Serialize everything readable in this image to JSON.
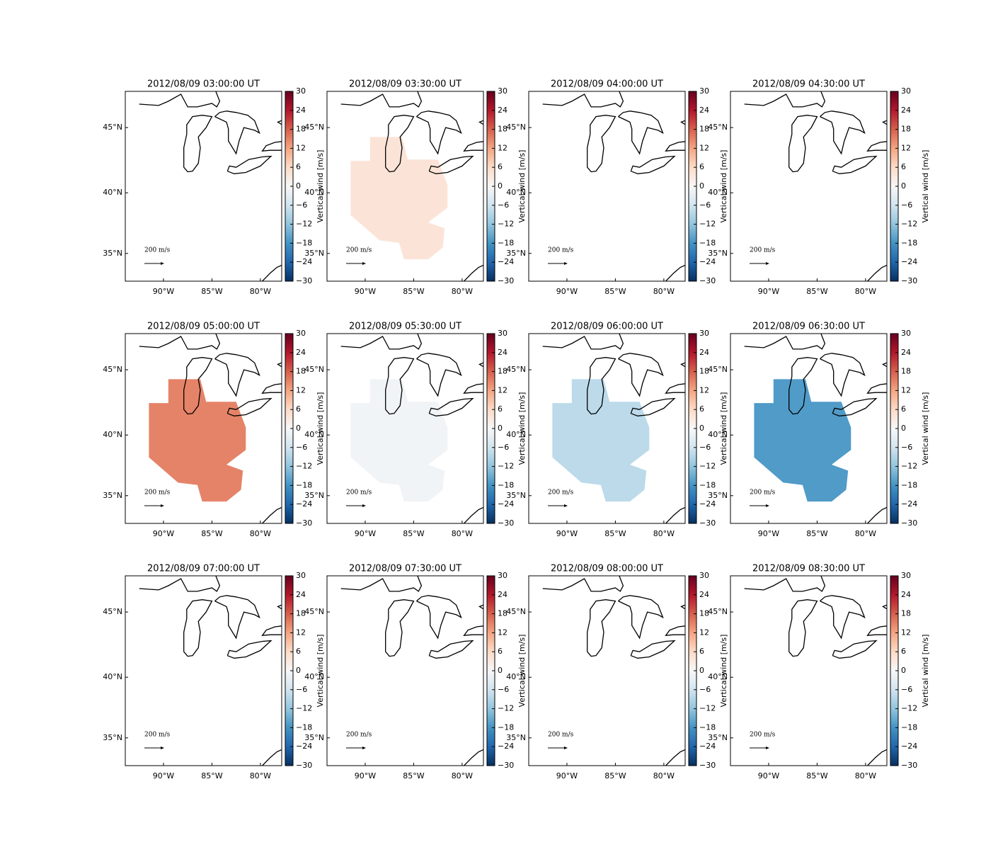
{
  "chart_data": {
    "type": "map",
    "panels": [
      {
        "title": "2012/08/09 03:00:00 UT",
        "value": null
      },
      {
        "title": "2012/08/09 03:30:00 UT",
        "value": 4
      },
      {
        "title": "2012/08/09 04:00:00 UT",
        "value": null
      },
      {
        "title": "2012/08/09 04:30:00 UT",
        "value": null
      },
      {
        "title": "2012/08/09 05:00:00 UT",
        "value": 15
      },
      {
        "title": "2012/08/09 05:30:00 UT",
        "value": -1
      },
      {
        "title": "2012/08/09 06:00:00 UT",
        "value": -8
      },
      {
        "title": "2012/08/09 06:30:00 UT",
        "value": -17
      },
      {
        "title": "2012/08/09 07:00:00 UT",
        "value": null
      },
      {
        "title": "2012/08/09 07:30:00 UT",
        "value": null
      },
      {
        "title": "2012/08/09 08:00:00 UT",
        "value": null
      },
      {
        "title": "2012/08/09 08:30:00 UT",
        "value": null
      }
    ],
    "xlim": [
      -93.94,
      -77.8
    ],
    "ylim": [
      32.6,
      47.6
    ],
    "xticks": [
      {
        "value": -90,
        "label": "90°W"
      },
      {
        "value": -85,
        "label": "85°W"
      },
      {
        "value": -80,
        "label": "80°W"
      }
    ],
    "yticks": [
      {
        "value": 45,
        "label": "45°N"
      },
      {
        "value": 40,
        "label": "40°N"
      },
      {
        "value": 35,
        "label": "35°N"
      }
    ],
    "scale_label": "200 m/s",
    "colorbar": {
      "label": "Vertical wind [m/s]",
      "lim": [
        -30,
        30
      ],
      "ticks": [
        30,
        24,
        18,
        12,
        6,
        0,
        {
          "value": -6,
          "label": "−6"
        },
        {
          "value": -12,
          "label": "−12"
        },
        {
          "value": -18,
          "label": "−18"
        },
        {
          "value": -24,
          "label": "−24"
        },
        {
          "value": -30,
          "label": "−30"
        }
      ],
      "colormap": [
        "#053061",
        "#2166ac",
        "#4393c3",
        "#92c5de",
        "#d1e5f0",
        "#f7f7f7",
        "#fddbc7",
        "#f4a582",
        "#d6604d",
        "#b2182b",
        "#67001f"
      ]
    }
  }
}
